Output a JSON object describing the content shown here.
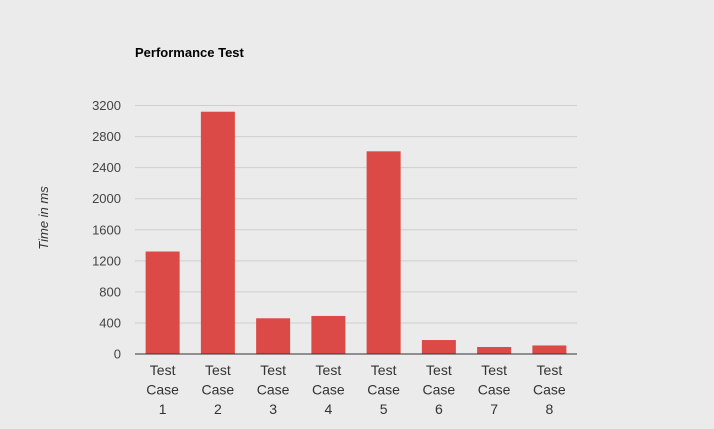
{
  "chart_data": {
    "type": "bar",
    "title": "Performance Test",
    "ylabel": "Time in ms",
    "xlabel": "",
    "categories": [
      "Test Case 1",
      "Test Case 2",
      "Test Case 3",
      "Test Case 4",
      "Test Case 5",
      "Test Case 6",
      "Test Case 7",
      "Test Case 8"
    ],
    "values": [
      1320,
      3120,
      460,
      490,
      2610,
      180,
      90,
      110
    ],
    "ylim": [
      0,
      3200
    ],
    "yticks": [
      0,
      400,
      800,
      1200,
      1600,
      2000,
      2400,
      2800,
      3200
    ],
    "bar_color": "#dc4a47",
    "grid": true,
    "legend": "none"
  }
}
